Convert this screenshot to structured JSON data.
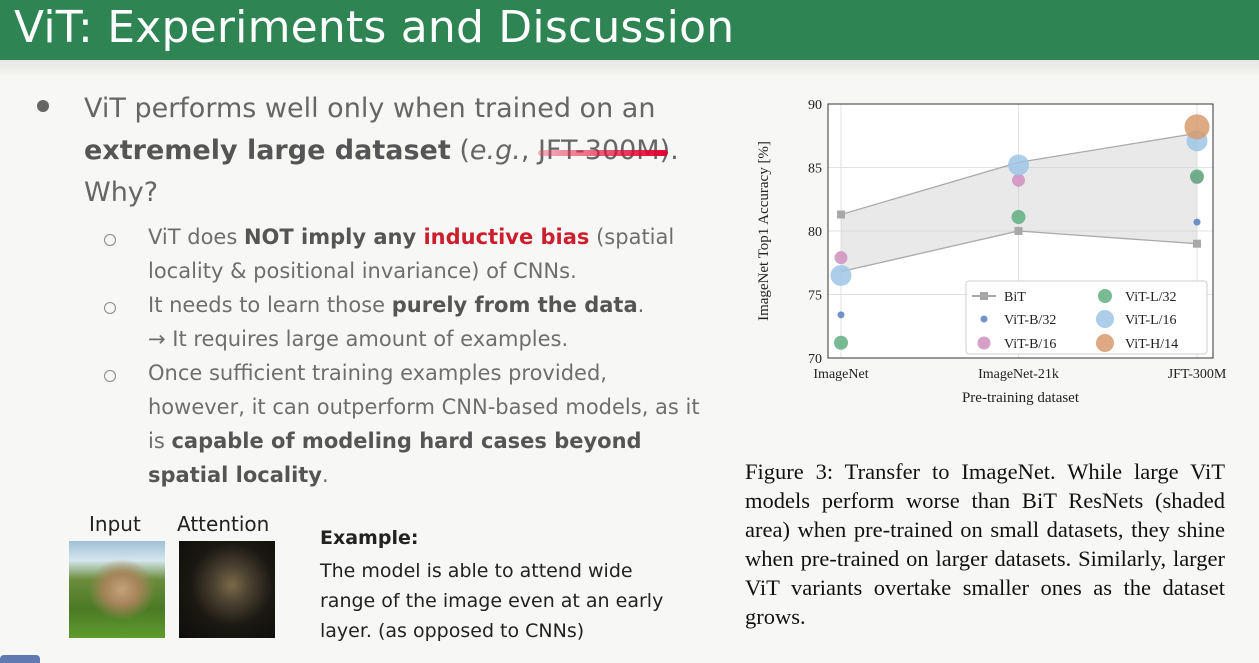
{
  "slide": {
    "title": "ViT: Experiments and Discussion"
  },
  "main_bullet": {
    "line1": "ViT performs well only when trained on an",
    "bold": "extremely large dataset",
    "paren_open": " (",
    "eg": "e.g.",
    "comma": ", ",
    "jft": "JFT-300M",
    "paren_close": ").",
    "why": "Why?"
  },
  "sub_bullets": [
    {
      "pre": "ViT does ",
      "bold1": "NOT imply any ",
      "red": "inductive bias",
      "post": " (spatial locality & positional invariance) of CNNs."
    },
    {
      "pre": "It needs to learn those ",
      "bold": "purely from the data",
      "post": ".",
      "line2": "→ It requires large amount of examples."
    },
    {
      "pre": "Once sufficient training examples provided, however, it can outperform CNN-based models, as it is ",
      "bold": "capable of modeling hard cases beyond spatial locality",
      "post": "."
    }
  ],
  "images": {
    "input_label": "Input",
    "attention_label": "Attention"
  },
  "example": {
    "title": "Example:",
    "text": "The model is able to attend wide range of the image even at an early layer. (as opposed to CNNs)"
  },
  "chart_data": {
    "type": "scatter",
    "xlabel": "Pre-training dataset",
    "ylabel": "ImageNet Top1 Accuracy [%]",
    "categories": [
      "ImageNet",
      "ImageNet-21k",
      "JFT-300M"
    ],
    "ylim": [
      70,
      90
    ],
    "yticks": [
      70,
      75,
      80,
      85,
      90
    ],
    "grid": true,
    "legend_position": "bottom-right",
    "shaded_band": {
      "label": "BiT",
      "lower": [
        76.8,
        80.0,
        79.0
      ],
      "upper": [
        81.3,
        85.4,
        87.7
      ]
    },
    "series": [
      {
        "name": "BiT",
        "values": [
          81.3,
          80.0,
          79.0
        ],
        "color": "#a8a8a8",
        "marker": "square"
      },
      {
        "name": "ViT-B/32",
        "values": [
          73.4,
          null,
          80.7
        ],
        "color": "#5a7fc0",
        "marker": "circle-xs"
      },
      {
        "name": "ViT-B/16",
        "values": [
          77.9,
          84.0,
          84.2
        ],
        "color": "#cf8fbf",
        "marker": "circle-s"
      },
      {
        "name": "ViT-L/32",
        "values": [
          71.2,
          81.1,
          84.3
        ],
        "color": "#5fae80",
        "marker": "circle-m"
      },
      {
        "name": "ViT-L/16",
        "values": [
          76.5,
          85.2,
          87.1
        ],
        "color": "#9ec6e8",
        "marker": "circle-l"
      },
      {
        "name": "ViT-H/14",
        "values": [
          null,
          null,
          88.2
        ],
        "color": "#d79b6e",
        "marker": "circle-xl"
      }
    ]
  },
  "figure_caption": "Figure 3: Transfer to ImageNet. While large ViT models perform worse than BiT ResNets (shaded area) when pre-trained on small datasets, they shine when pre-trained on larger datasets. Similarly, larger ViT variants overtake smaller ones as the dataset grows.",
  "colors": {
    "header_green": "#2e8553",
    "highlight_red": "#cc1f2e"
  }
}
